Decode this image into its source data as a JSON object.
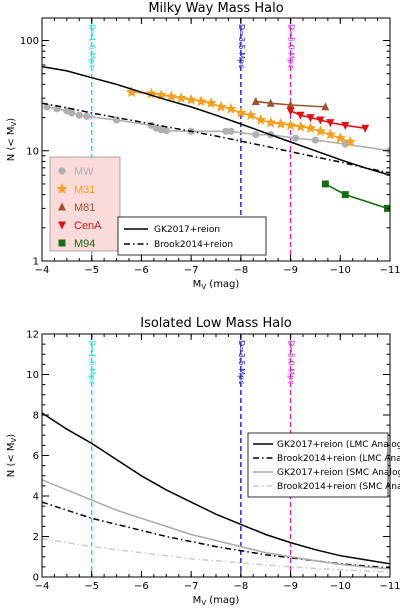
{
  "chart_data": [
    {
      "type": "line",
      "title": "Milky Way Mass Halo",
      "xlabel": "M",
      "xlabel_sub": "V",
      "xlabel_unit": "(mag)",
      "ylabel": "N (< M",
      "ylabel_sub": "V",
      "ylabel_close": ")",
      "x_scale": "linear",
      "xlim": [
        -4,
        -11
      ],
      "y_scale": "log",
      "ylim": [
        1,
        160
      ],
      "x_ticks": [
        -4,
        -5,
        -6,
        -7,
        -8,
        -9,
        -10,
        -11
      ],
      "x_tick_labels": [
        "−4",
        "−5",
        "−6",
        "−7",
        "−8",
        "−9",
        "−10",
        "−11"
      ],
      "y_ticks": [
        1,
        10,
        100
      ],
      "y_tick_labels": [
        "1",
        "10",
        "100"
      ],
      "distance_lines": [
        {
          "x": -5,
          "label": "D=1.5 Mpc",
          "color": "#22dddd"
        },
        {
          "x": -8,
          "label": "D=3.5 Mpc",
          "color": "#1a1acc"
        },
        {
          "x": -9,
          "label": "D=5.0 Mpc",
          "color": "#d020d0"
        }
      ],
      "series": [
        {
          "name": "GK2017+reion",
          "style": "solid",
          "color": "#000000",
          "x": [
            -4,
            -4.5,
            -5,
            -5.5,
            -6,
            -6.5,
            -7,
            -7.5,
            -8,
            -8.5,
            -9,
            -9.5,
            -10,
            -10.5,
            -11
          ],
          "y": [
            58,
            53,
            46,
            40,
            34,
            29,
            25,
            21,
            17.5,
            14.5,
            12,
            10,
            8.3,
            7,
            6
          ]
        },
        {
          "name": "Brook2014+reion",
          "style": "dashdot",
          "color": "#000000",
          "x": [
            -4,
            -4.5,
            -5,
            -5.5,
            -6,
            -6.5,
            -7,
            -7.5,
            -8,
            -8.5,
            -9,
            -9.5,
            -10,
            -10.5,
            -11
          ],
          "y": [
            27,
            24.5,
            22,
            20,
            18.2,
            16.5,
            15,
            13.6,
            12.2,
            11,
            9.8,
            8.8,
            7.9,
            7,
            6.3
          ]
        }
      ],
      "galaxies": [
        {
          "name": "MW",
          "marker": "circle",
          "color": "#b0b0b0",
          "x": [
            -4.1,
            -4.3,
            -4.5,
            -4.6,
            -4.75,
            -4.9,
            -5.5,
            -6.2,
            -6.3,
            -6.4,
            -6.5,
            -7,
            -7.7,
            -7.8,
            -8.3,
            -8.6,
            -9.1,
            -9.5,
            -10.1,
            -11
          ],
          "y": [
            25,
            24,
            23,
            22,
            21,
            20.5,
            19,
            17,
            16,
            15.5,
            15.2,
            15,
            15,
            15,
            14,
            14,
            13,
            12.5,
            11.5,
            10
          ]
        },
        {
          "name": "M31",
          "marker": "star",
          "color": "#f5a020",
          "x": [
            -5.8,
            -6.2,
            -6.4,
            -6.6,
            -6.8,
            -7.0,
            -7.2,
            -7.4,
            -7.6,
            -7.8,
            -8.0,
            -8.2,
            -8.4,
            -8.6,
            -8.8,
            -9.0,
            -9.2,
            -9.4,
            -9.6,
            -9.8,
            -10.0,
            -10.2
          ],
          "y": [
            34,
            33,
            32,
            31,
            30,
            29,
            28,
            27,
            25,
            24,
            22,
            21,
            19,
            18,
            17.5,
            17,
            16.5,
            16,
            15,
            14,
            13,
            12
          ]
        },
        {
          "name": "M81",
          "marker": "triangle",
          "color": "#a0522d",
          "x": [
            -8.3,
            -8.6,
            -9.0,
            -9.7
          ],
          "y": [
            28,
            27,
            26,
            25
          ]
        },
        {
          "name": "CenA",
          "marker": "triangle-down",
          "color": "#e01010",
          "x": [
            -9.0,
            -9.2,
            -9.4,
            -9.6,
            -9.8,
            -10.1,
            -10.5
          ],
          "y": [
            23,
            21,
            20,
            19,
            18,
            17,
            16
          ]
        },
        {
          "name": "M94",
          "marker": "square",
          "color": "#157015",
          "x": [
            -9.7,
            -10.1,
            -10.95
          ],
          "y": [
            5,
            4,
            3
          ]
        }
      ],
      "legend_lines_placement": "bottom-right",
      "legend_galaxies_placement": "bottom-left"
    },
    {
      "type": "line",
      "title": "Isolated Low Mass Halo",
      "xlabel": "M",
      "xlabel_sub": "V",
      "xlabel_unit": "(mag)",
      "ylabel": "N (< M",
      "ylabel_sub": "V",
      "ylabel_close": ")",
      "x_scale": "linear",
      "xlim": [
        -4,
        -11
      ],
      "y_scale": "linear",
      "ylim": [
        0,
        12
      ],
      "x_ticks": [
        -4,
        -5,
        -6,
        -7,
        -8,
        -9,
        -10,
        -11
      ],
      "x_tick_labels": [
        "−4",
        "−5",
        "−6",
        "−7",
        "−8",
        "−9",
        "−10",
        "−11"
      ],
      "y_ticks": [
        0,
        2,
        4,
        6,
        8,
        10,
        12
      ],
      "y_tick_labels": [
        "0",
        "2",
        "4",
        "6",
        "8",
        "10",
        "12"
      ],
      "distance_lines": [
        {
          "x": -5,
          "label": "D=1.5 Mpc",
          "color": "#22dddd"
        },
        {
          "x": -8,
          "label": "D=3.5 Mpc",
          "color": "#1a1acc"
        },
        {
          "x": -9,
          "label": "D=5.0 Mpc",
          "color": "#d020d0"
        }
      ],
      "series": [
        {
          "name": "GK2017+reion (LMC Analogs)",
          "style": "solid",
          "color": "#000000",
          "x": [
            -4,
            -4.5,
            -5,
            -5.5,
            -6,
            -6.5,
            -7,
            -7.5,
            -8,
            -8.5,
            -9,
            -9.5,
            -10,
            -10.5,
            -11
          ],
          "y": [
            8.1,
            7.3,
            6.6,
            5.8,
            5.0,
            4.3,
            3.7,
            3.1,
            2.6,
            2.1,
            1.7,
            1.35,
            1.05,
            0.85,
            0.65
          ]
        },
        {
          "name": "Brook2014+reion (LMC Analogs)",
          "style": "dashdot",
          "color": "#000000",
          "x": [
            -4,
            -4.5,
            -5,
            -5.5,
            -6,
            -6.5,
            -7,
            -7.5,
            -8,
            -8.5,
            -9,
            -9.5,
            -10,
            -10.5,
            -11
          ],
          "y": [
            3.7,
            3.3,
            2.9,
            2.6,
            2.3,
            2.0,
            1.75,
            1.5,
            1.3,
            1.1,
            0.95,
            0.8,
            0.65,
            0.55,
            0.45
          ]
        },
        {
          "name": "GK2017+reion (SMC Analogs)",
          "style": "solid",
          "color": "#aaaaaa",
          "x": [
            -4,
            -4.5,
            -5,
            -5.5,
            -6,
            -6.5,
            -7,
            -7.5,
            -8,
            -8.5,
            -9,
            -9.5,
            -10,
            -10.5,
            -11
          ],
          "y": [
            4.8,
            4.3,
            3.8,
            3.3,
            2.9,
            2.5,
            2.1,
            1.8,
            1.5,
            1.2,
            1.0,
            0.8,
            0.62,
            0.5,
            0.4
          ]
        },
        {
          "name": "Brook2014+reion (SMC Analogs)",
          "style": "dashdot",
          "color": "#cccccc",
          "x": [
            -4,
            -4.5,
            -5,
            -5.5,
            -6,
            -6.5,
            -7,
            -7.5,
            -8,
            -8.5,
            -9,
            -9.5,
            -10,
            -10.5,
            -11
          ],
          "y": [
            1.9,
            1.7,
            1.5,
            1.35,
            1.2,
            1.05,
            0.9,
            0.8,
            0.7,
            0.6,
            0.5,
            0.42,
            0.35,
            0.3,
            0.25
          ]
        }
      ],
      "legend_lines_placement": "right"
    }
  ]
}
